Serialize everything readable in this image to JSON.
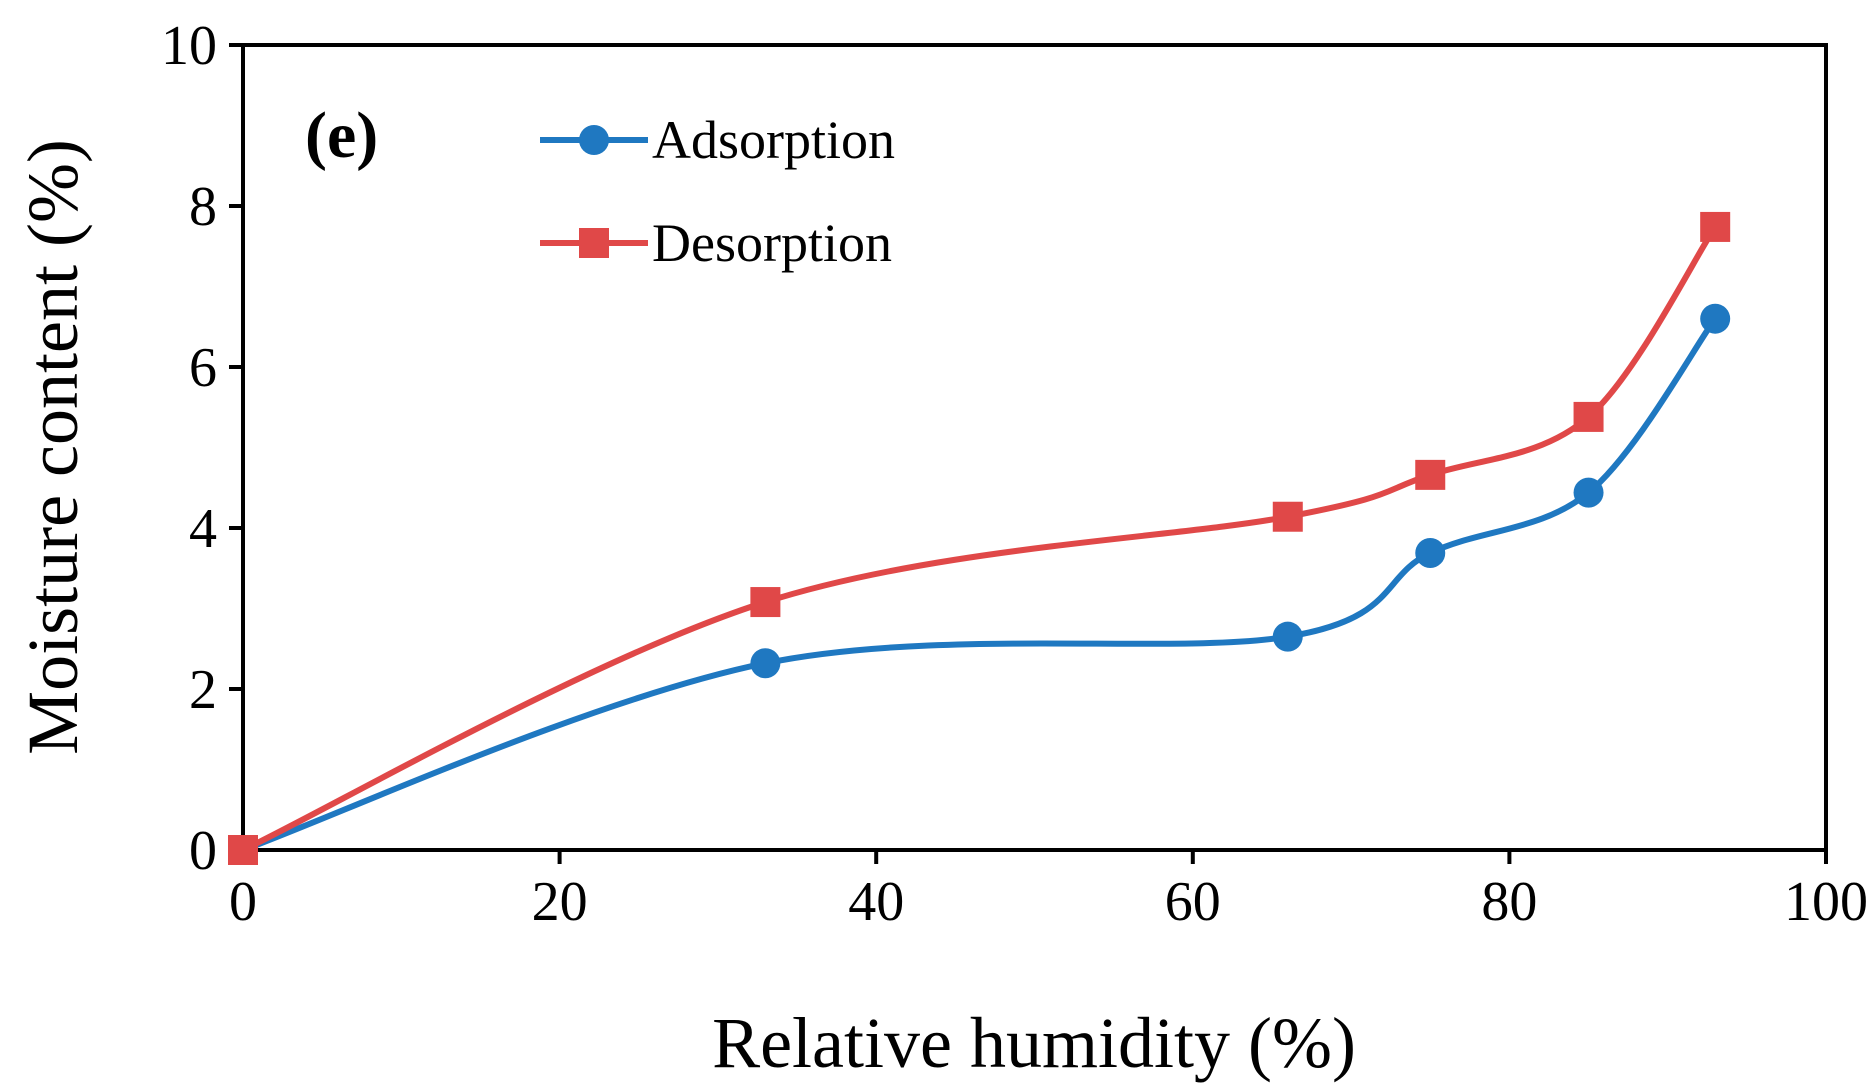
{
  "chart_data": {
    "type": "line",
    "title": "",
    "panel_label": "(e)",
    "xlabel": "Relative humidity (%)",
    "ylabel": "Moisture content (%)",
    "xlim": [
      0,
      100
    ],
    "ylim": [
      0,
      10
    ],
    "xticks": [
      0,
      20,
      40,
      60,
      80,
      100
    ],
    "yticks": [
      0,
      2,
      4,
      6,
      8,
      10
    ],
    "legend_position": "top-left",
    "grid": false,
    "series": [
      {
        "name": "Adsorption",
        "color": "#1f78c1",
        "marker": "circle",
        "x": [
          0,
          33,
          66,
          75,
          85,
          93
        ],
        "y": [
          0,
          2.32,
          2.65,
          3.69,
          4.44,
          6.6
        ]
      },
      {
        "name": "Desorption",
        "color": "#e04848",
        "marker": "square",
        "x": [
          0,
          33,
          66,
          75,
          85,
          93
        ],
        "y": [
          0,
          3.08,
          4.14,
          4.66,
          5.38,
          7.74
        ]
      }
    ]
  }
}
